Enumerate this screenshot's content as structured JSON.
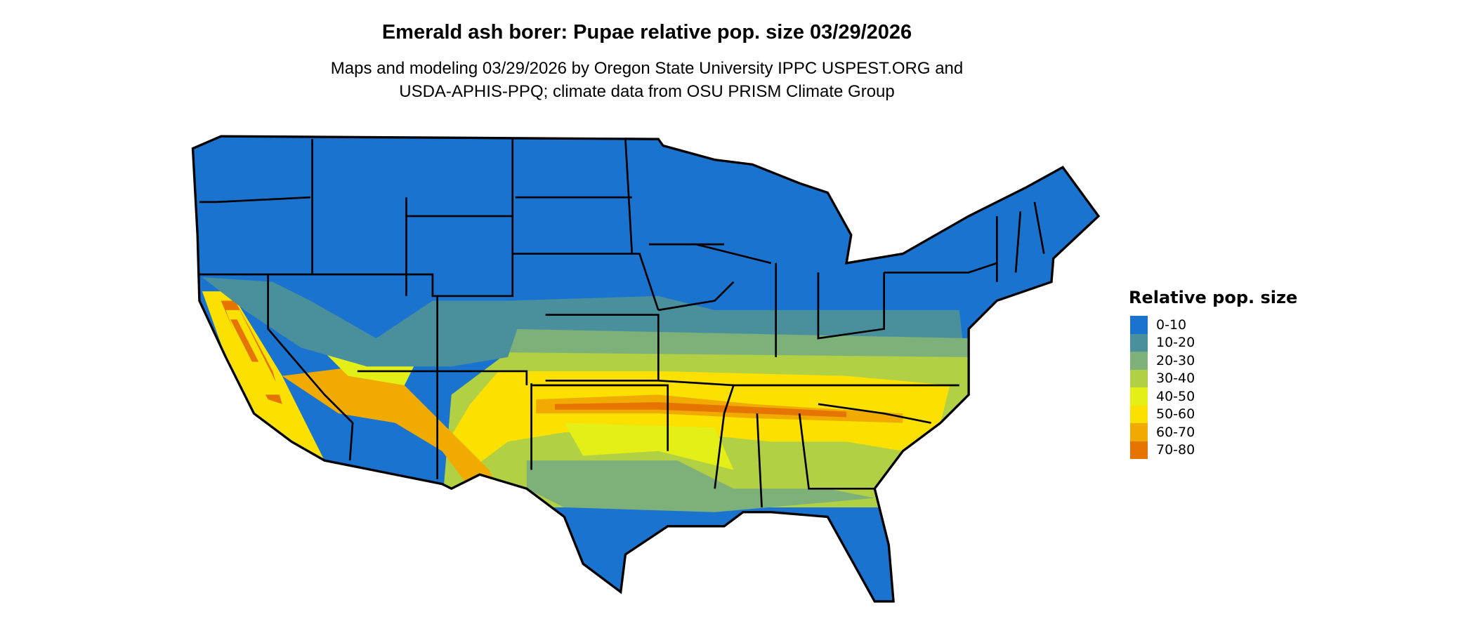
{
  "title": "Emerald ash borer: Pupae relative pop. size 03/29/2026",
  "subtitle_lines": [
    "Maps and modeling 03/29/2026 by Oregon State University IPPC USPEST.ORG and",
    "USDA-APHIS-PPQ; climate data from OSU PRISM Climate Group"
  ],
  "legend": {
    "title": "Relative pop. size",
    "items": [
      {
        "label": "0-10",
        "color": "#1a73cf"
      },
      {
        "label": "10-20",
        "color": "#4a909c"
      },
      {
        "label": "20-30",
        "color": "#7eb079"
      },
      {
        "label": "30-40",
        "color": "#b2d043"
      },
      {
        "label": "40-50",
        "color": "#e4ef17"
      },
      {
        "label": "50-60",
        "color": "#fbe000"
      },
      {
        "label": "60-70",
        "color": "#f0aa00"
      },
      {
        "label": "70-80",
        "color": "#e57400"
      }
    ]
  }
}
